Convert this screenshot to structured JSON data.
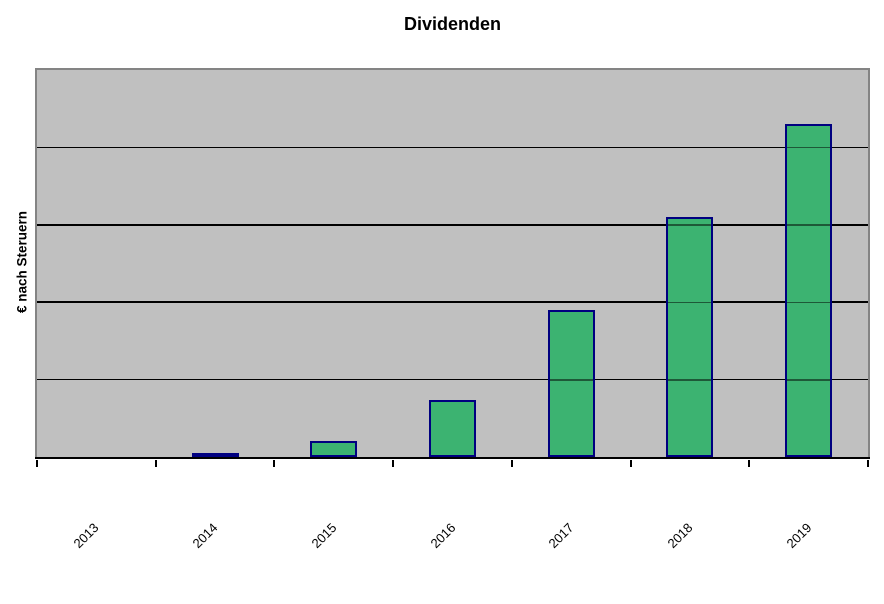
{
  "chart_data": {
    "type": "bar",
    "title": "Dividenden",
    "ylabel": "€ nach Steruern",
    "xlabel": "",
    "categories": [
      "2013",
      "2014",
      "2015",
      "2016",
      "2017",
      "2018",
      "2019"
    ],
    "values": [
      0,
      0.05,
      0.21,
      0.74,
      1.9,
      3.1,
      4.3
    ],
    "value_units": "gridline-units (no y tick labels shown; 5 equal horizontal bands)",
    "ylim": [
      0,
      5
    ],
    "gridline_values": [
      1,
      2,
      3,
      4
    ],
    "y_tick_labels_visible": false,
    "legend": "none",
    "grid": "horizontal-only",
    "x_label_rotation_deg": 45,
    "colors": {
      "bar_fill": "#3CB371",
      "bar_border": "#000080",
      "plot_background": "#C0C0C0",
      "plot_border": "#848484",
      "gridline": "#000000",
      "axis": "#000000",
      "text": "#000000",
      "page_background": "#FFFFFF"
    }
  }
}
